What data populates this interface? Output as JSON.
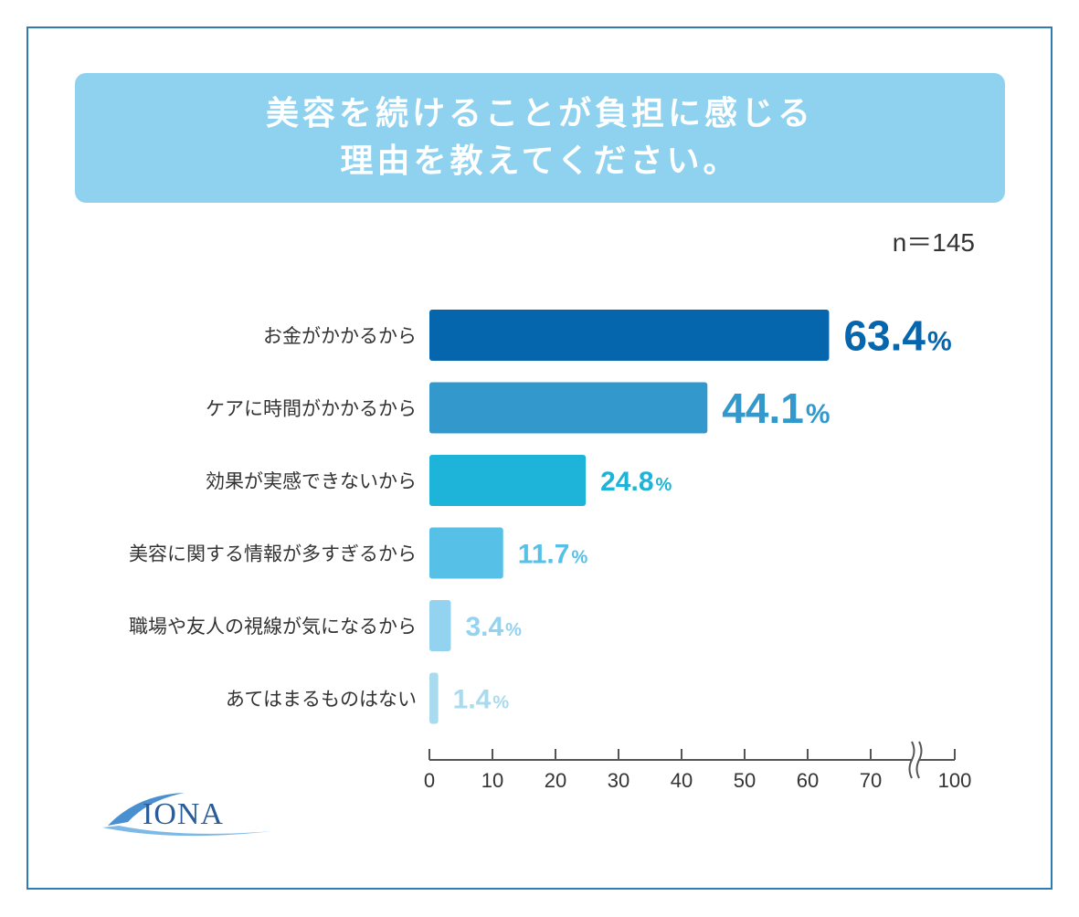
{
  "header": {
    "title_line1": "美容を続けることが負担に感じる",
    "title_line2": "理由を教えてください。",
    "sample_size": "n＝145"
  },
  "logo": {
    "text": "IONA",
    "icon": "iona-logo"
  },
  "colors": {
    "frame": "#2c7cb5",
    "title_bg": "#8fd2ef",
    "bars": [
      "#0566ae",
      "#3399cc",
      "#1eb3d9",
      "#57c0e6",
      "#93d3ef",
      "#a9dbee"
    ]
  },
  "chart_data": {
    "type": "bar",
    "orientation": "horizontal",
    "categories": [
      "お金がかかるから",
      "ケアに時間がかかるから",
      "効果が実感できないから",
      "美容に関する情報が多すぎるから",
      "職場や友人の視線が気になるから",
      "あてはまるものはない"
    ],
    "values": [
      63.4,
      44.1,
      24.8,
      11.7,
      3.4,
      1.4
    ],
    "value_labels": [
      "63.4",
      "44.1",
      "24.8",
      "11.7",
      "3.4",
      "1.4"
    ],
    "unit": "%",
    "xlim": [
      0,
      100
    ],
    "axis_break": true,
    "xticks": [
      0,
      10,
      20,
      30,
      40,
      50,
      60,
      70,
      100
    ],
    "grid": false
  }
}
